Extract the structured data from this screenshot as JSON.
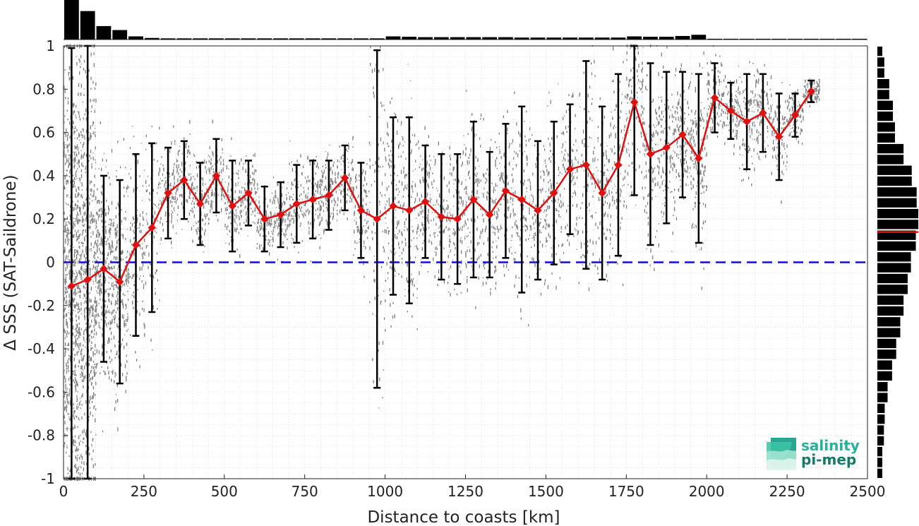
{
  "chart_data": {
    "type": "line",
    "xlabel": "Distance to coasts [km]",
    "ylabel": "Δ SSS (SAT-Saildrone)",
    "xlim": [
      0,
      2500
    ],
    "ylim": [
      -1,
      1
    ],
    "x_ticks": [
      0,
      250,
      500,
      750,
      1000,
      1250,
      1500,
      1750,
      2000,
      2250,
      2500
    ],
    "x_tick_labels": [
      "0",
      "250",
      "500",
      "750",
      "1000",
      "1250",
      "1500",
      "1750",
      "2000",
      "2250",
      "2500"
    ],
    "y_ticks": [
      -1,
      -0.8,
      -0.6,
      -0.4,
      -0.2,
      0,
      0.2,
      0.4,
      0.6,
      0.8,
      1
    ],
    "y_tick_labels": [
      "-1",
      "-0.8",
      "-0.6",
      "-0.4",
      "-0.2",
      "0",
      "0.2",
      "0.4",
      "0.6",
      "0.8",
      "1"
    ],
    "grid": true,
    "reference_line_y": 0,
    "colors": {
      "mean": "#e01010",
      "zero_line": "#1010d0",
      "scatter": "#808080",
      "errorbar": "#000000",
      "histogram": "#000000",
      "median_marker": "#e01010"
    },
    "series": [
      {
        "x": [
          25,
          75,
          125,
          175,
          225,
          275,
          325,
          375,
          425,
          475,
          525,
          575,
          625,
          675,
          725,
          775,
          825,
          875,
          925,
          975,
          1025,
          1075,
          1125,
          1175,
          1225,
          1275,
          1325,
          1375,
          1425,
          1475,
          1525,
          1575,
          1625,
          1675,
          1725,
          1775,
          1825,
          1875,
          1925,
          1975,
          2025,
          2075,
          2125,
          2175,
          2225,
          2275,
          2325
        ],
        "y": [
          -0.11,
          -0.08,
          -0.03,
          -0.09,
          0.08,
          0.16,
          0.32,
          0.38,
          0.27,
          0.4,
          0.26,
          0.32,
          0.2,
          0.22,
          0.27,
          0.29,
          0.31,
          0.39,
          0.24,
          0.2,
          0.26,
          0.24,
          0.28,
          0.21,
          0.2,
          0.29,
          0.22,
          0.33,
          0.29,
          0.24,
          0.32,
          0.43,
          0.45,
          0.32,
          0.45,
          0.74,
          0.5,
          0.53,
          0.59,
          0.48,
          0.76,
          0.7,
          0.65,
          0.69,
          0.58,
          0.68,
          0.79
        ],
        "std": [
          1.1,
          1.1,
          0.43,
          0.47,
          0.42,
          0.39,
          0.21,
          0.18,
          0.19,
          0.17,
          0.21,
          0.15,
          0.15,
          0.15,
          0.18,
          0.18,
          0.16,
          0.15,
          0.22,
          0.78,
          0.41,
          0.43,
          0.26,
          0.29,
          0.3,
          0.36,
          0.29,
          0.31,
          0.43,
          0.32,
          0.33,
          0.3,
          0.48,
          0.4,
          0.42,
          0.43,
          0.42,
          0.35,
          0.29,
          0.39,
          0.16,
          0.13,
          0.22,
          0.18,
          0.2,
          0.1,
          0.05
        ]
      }
    ],
    "histogram_top": {
      "bin_centers": [
        25,
        75,
        125,
        175,
        225,
        275,
        325,
        375,
        425,
        475,
        525,
        575,
        625,
        675,
        725,
        775,
        825,
        875,
        925,
        975,
        1025,
        1075,
        1125,
        1175,
        1225,
        1275,
        1325,
        1375,
        1425,
        1475,
        1525,
        1575,
        1625,
        1675,
        1725,
        1775,
        1825,
        1875,
        1925,
        1975,
        2025,
        2075,
        2125,
        2175,
        2225,
        2275,
        2325,
        2375,
        2425,
        2475
      ],
      "relative_counts": [
        1.0,
        0.72,
        0.34,
        0.24,
        0.08,
        0.04,
        0.03,
        0.03,
        0.03,
        0.03,
        0.03,
        0.03,
        0.03,
        0.03,
        0.03,
        0.03,
        0.03,
        0.03,
        0.03,
        0.03,
        0.08,
        0.07,
        0.06,
        0.06,
        0.06,
        0.06,
        0.06,
        0.06,
        0.05,
        0.05,
        0.05,
        0.05,
        0.05,
        0.05,
        0.05,
        0.08,
        0.07,
        0.07,
        0.09,
        0.12,
        0.02,
        0.02,
        0.02,
        0.02,
        0.02,
        0.02,
        0.02,
        0.02,
        0.02,
        0.02
      ]
    },
    "histogram_right": {
      "bin_centers": [
        -0.975,
        -0.925,
        -0.875,
        -0.825,
        -0.775,
        -0.725,
        -0.675,
        -0.625,
        -0.575,
        -0.525,
        -0.475,
        -0.425,
        -0.375,
        -0.325,
        -0.275,
        -0.225,
        -0.175,
        -0.125,
        -0.075,
        -0.025,
        0.025,
        0.075,
        0.125,
        0.175,
        0.225,
        0.275,
        0.325,
        0.375,
        0.425,
        0.475,
        0.525,
        0.575,
        0.625,
        0.675,
        0.725,
        0.775,
        0.825,
        0.875,
        0.925,
        0.975
      ],
      "relative_counts": [
        0.12,
        0.12,
        0.12,
        0.16,
        0.16,
        0.18,
        0.18,
        0.25,
        0.25,
        0.36,
        0.36,
        0.46,
        0.46,
        0.56,
        0.56,
        0.64,
        0.64,
        0.74,
        0.74,
        0.82,
        0.82,
        0.94,
        0.94,
        1.0,
        1.0,
        0.96,
        0.96,
        0.84,
        0.84,
        0.64,
        0.64,
        0.43,
        0.43,
        0.38,
        0.38,
        0.29,
        0.29,
        0.17,
        0.17,
        0.12
      ],
      "median": 0.14
    }
  },
  "logo": {
    "line1": "salinity",
    "line2": "pi-mep"
  }
}
